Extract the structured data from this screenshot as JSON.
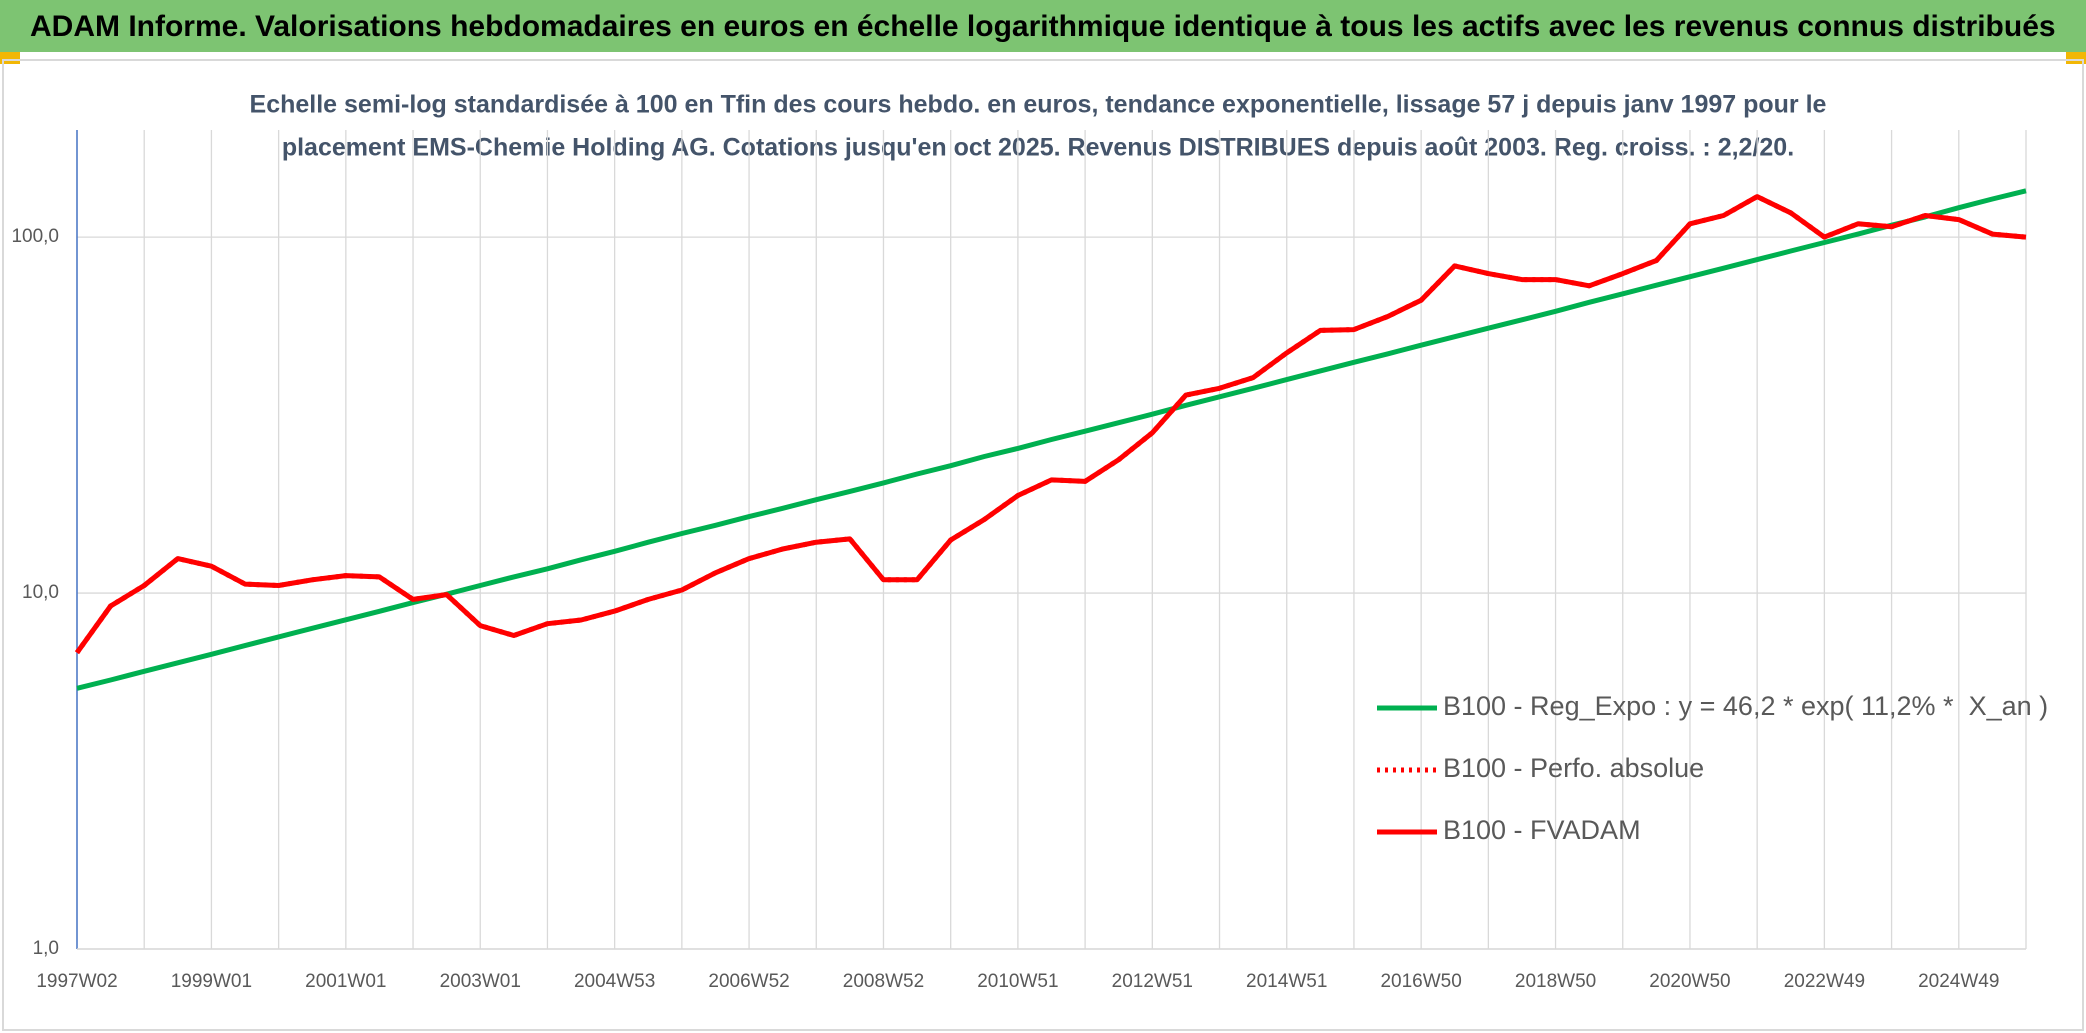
{
  "header": {
    "title": "ADAM Informe. Valorisations hebdomadaires en euros en échelle logarithmique identique à tous les actifs avec les revenus connus distribués"
  },
  "chart_data": {
    "type": "line",
    "subtitle": [
      "Echelle semi-log standardisée à 100 en Tfin des cours hebdo. en euros, tendance exponentielle, lissage 57 j depuis janv 1997 pour le",
      "placement EMS-Chemie Holding AG. Cotations jusqu'en oct 2025. Revenus DISTRIBUES depuis août 2003. Reg. croiss. : 2,2/20."
    ],
    "log_scale": true,
    "grid": true,
    "legend": "lower right",
    "ylim": [
      1,
      200
    ],
    "yticks": [
      {
        "value": 1,
        "label": "1,0"
      },
      {
        "value": 10,
        "label": "10,0"
      },
      {
        "value": 100,
        "label": "100,0"
      }
    ],
    "categories": [
      "1997W02",
      null,
      null,
      null,
      "1999W01",
      null,
      null,
      null,
      "2001W01",
      null,
      null,
      null,
      "2003W01",
      null,
      null,
      null,
      "2004W53",
      null,
      null,
      null,
      "2006W52",
      null,
      null,
      null,
      "2008W52",
      null,
      null,
      null,
      "2010W51",
      null,
      null,
      null,
      "2012W51",
      null,
      null,
      null,
      "2014W51",
      null,
      null,
      null,
      "2016W50",
      null,
      null,
      null,
      "2018W50",
      null,
      null,
      null,
      "2020W50",
      null,
      null,
      null,
      "2022W49",
      null,
      null,
      null,
      "2024W49",
      null,
      null
    ],
    "series": [
      {
        "name": "B100 - Reg_Expo : y = 46,2 * exp( 11,2% *  X_an )",
        "color": "#00b050",
        "dash": "solid",
        "values": [
          5.4,
          5.7,
          6.03,
          6.37,
          6.73,
          7.12,
          7.53,
          7.96,
          8.41,
          8.89,
          9.4,
          9.93,
          10.5,
          11.1,
          11.7,
          12.4,
          13.1,
          13.9,
          14.7,
          15.5,
          16.4,
          17.3,
          18.3,
          19.3,
          20.4,
          21.6,
          22.8,
          24.2,
          25.5,
          27.0,
          28.5,
          30.1,
          31.8,
          33.7,
          35.6,
          37.6,
          39.8,
          42.1,
          44.5,
          47.0,
          49.7,
          52.5,
          55.5,
          58.6,
          61.9,
          65.6,
          69.3,
          73.3,
          77.4,
          81.8,
          86.5,
          91.4,
          96.6,
          102,
          108,
          114,
          121,
          128,
          135
        ]
      },
      {
        "name": "B100 - Perfo. absolue",
        "color": "#ff0000",
        "dash": "dotted",
        "values": [
          6.8,
          9.2,
          10.5,
          12.5,
          11.9,
          10.6,
          10.5,
          10.9,
          11.2,
          11.1,
          9.6,
          9.9,
          8.1,
          7.6,
          8.2,
          8.4,
          8.9,
          9.6,
          10.2,
          11.4,
          12.5,
          13.3,
          13.9,
          14.2,
          10.9,
          10.9,
          14.1,
          16.1,
          18.8,
          20.8,
          20.6,
          23.7,
          28.2,
          36,
          37.6,
          40.3,
          47.3,
          54.7,
          55,
          59.8,
          66.5,
          83,
          79,
          76,
          76,
          73,
          79,
          86,
          109,
          115,
          130,
          117,
          100,
          109,
          107,
          115,
          112,
          102,
          100
        ]
      },
      {
        "name": "B100 - FVADAM",
        "color": "#ff0000",
        "dash": "solid",
        "values": [
          6.8,
          9.2,
          10.5,
          12.5,
          11.9,
          10.6,
          10.5,
          10.9,
          11.2,
          11.1,
          9.6,
          9.9,
          8.1,
          7.6,
          8.2,
          8.4,
          8.9,
          9.6,
          10.2,
          11.4,
          12.5,
          13.3,
          13.9,
          14.2,
          10.9,
          10.9,
          14.1,
          16.1,
          18.8,
          20.8,
          20.6,
          23.7,
          28.2,
          36,
          37.6,
          40.3,
          47.3,
          54.7,
          55,
          59.8,
          66.5,
          83,
          79,
          76,
          76,
          73,
          79,
          86,
          109,
          115,
          130,
          117,
          100,
          109,
          107,
          115,
          112,
          102,
          100
        ]
      }
    ]
  }
}
